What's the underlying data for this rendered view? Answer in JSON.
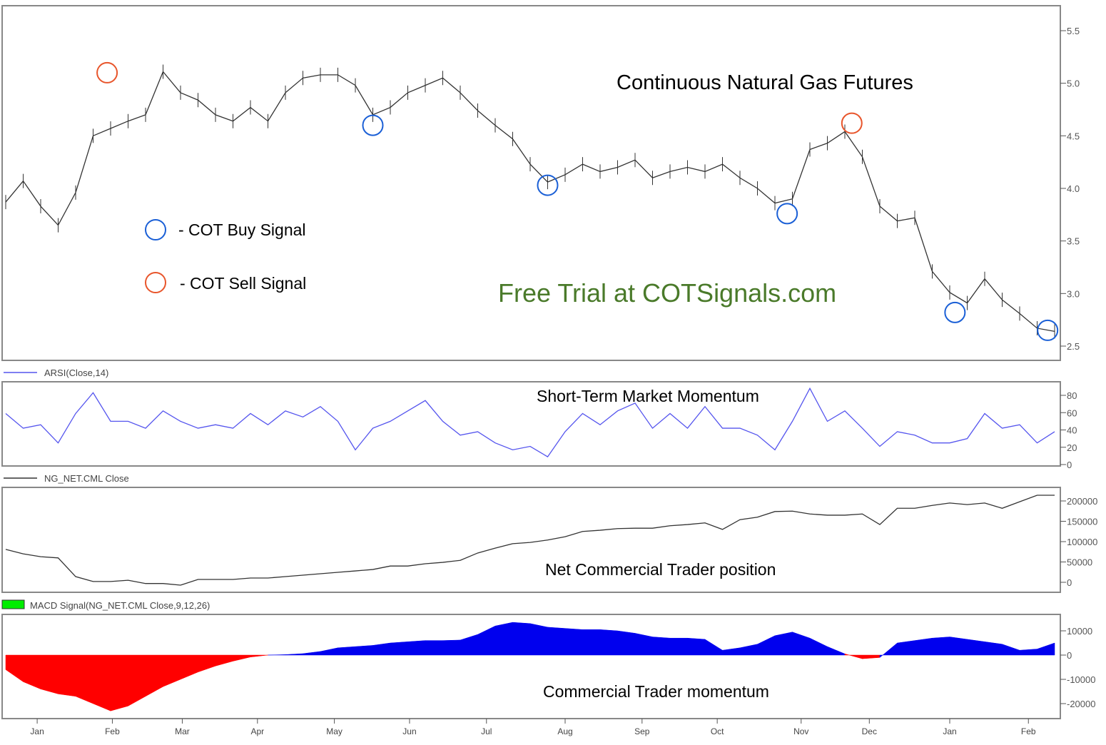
{
  "chart_data": [
    {
      "type": "line",
      "title": "Continuous Natural Gas Futures",
      "annotation": "Free Trial at COTSignals.com",
      "annotation_color": "#4a7a2a",
      "yticks": [
        "2.5",
        "3.0",
        "3.5",
        "4.0",
        "4.5",
        "5.0",
        "5.5"
      ],
      "ylim": [
        2.4,
        5.7
      ],
      "series": [
        {
          "color": "#333333",
          "values": [
            3.87,
            4.07,
            3.83,
            3.65,
            3.96,
            4.5,
            4.57,
            4.64,
            4.7,
            5.11,
            4.91,
            4.84,
            4.7,
            4.64,
            4.77,
            4.64,
            4.91,
            5.05,
            5.08,
            5.08,
            4.98,
            4.7,
            4.77,
            4.91,
            4.98,
            5.05,
            4.91,
            4.74,
            4.6,
            4.47,
            4.23,
            4.06,
            4.13,
            4.23,
            4.16,
            4.2,
            4.27,
            4.1,
            4.16,
            4.2,
            4.16,
            4.23,
            4.1,
            4.0,
            3.86,
            3.9,
            4.37,
            4.43,
            4.54,
            4.3,
            3.83,
            3.69,
            3.72,
            3.21,
            3.01,
            2.91,
            3.14,
            2.94,
            2.81,
            2.67,
            2.64
          ]
        }
      ],
      "legend": [
        {
          "label": "- COT Buy Signal",
          "color": "#1a5fd6"
        },
        {
          "label": "- COT Sell Signal",
          "color": "#e8552b"
        }
      ],
      "buy_signals": [
        {
          "i": 21,
          "y": 4.6
        },
        {
          "i": 31,
          "y": 4.03
        },
        {
          "i": 44.7,
          "y": 3.76
        },
        {
          "i": 54.3,
          "y": 2.82
        },
        {
          "i": 59.6,
          "y": 2.65
        }
      ],
      "sell_signals": [
        {
          "i": 5.8,
          "y": 5.1
        },
        {
          "i": 48.4,
          "y": 4.62
        }
      ]
    },
    {
      "type": "line",
      "legend_label": "ARSI(Close,14)",
      "title": "Short-Term Market Momentum",
      "color": "#5555ee",
      "yticks": [
        "0",
        "20",
        "40",
        "60",
        "80"
      ],
      "ylim": [
        0,
        95
      ],
      "values": [
        59,
        42,
        46,
        25,
        59,
        83,
        50,
        50,
        42,
        62,
        50,
        42,
        46,
        42,
        59,
        46,
        62,
        55,
        67,
        50,
        17,
        42,
        50,
        62,
        74,
        50,
        34,
        38,
        25,
        17,
        21,
        9,
        38,
        59,
        46,
        62,
        71,
        42,
        59,
        42,
        67,
        42,
        42,
        34,
        17,
        50,
        88,
        50,
        62,
        42,
        21,
        38,
        34,
        25,
        25,
        30,
        59,
        42,
        46,
        25,
        38
      ]
    },
    {
      "type": "line",
      "legend_label": "NG_NET.CML Close",
      "title": "Net Commercial Trader position",
      "color": "#333333",
      "yticks": [
        "0",
        "50000",
        "100000",
        "150000",
        "200000"
      ],
      "ylim": [
        -25000,
        235000
      ],
      "values": [
        81000,
        70000,
        63000,
        60000,
        14000,
        2000,
        2000,
        5000,
        -3000,
        -3000,
        -7000,
        7000,
        7000,
        7000,
        10500,
        10500,
        14000,
        17500,
        21000,
        24500,
        28000,
        31500,
        40000,
        40000,
        45600,
        49000,
        54000,
        72000,
        84000,
        95000,
        98000,
        104000,
        112000,
        125000,
        128000,
        132000,
        133000,
        133000,
        139000,
        142000,
        146000,
        130000,
        154000,
        160000,
        174000,
        175000,
        168000,
        165000,
        165000,
        168000,
        142000,
        182000,
        182000,
        189000,
        195000,
        191000,
        195000,
        182000,
        198000,
        214000,
        214000
      ]
    },
    {
      "type": "area",
      "legend_label": "MACD Signal(NG_NET.CML Close,9,12,26)",
      "legend_swatch": "#00ee00",
      "title": "Commercial Trader momentum",
      "positive_color": "#0000ee",
      "negative_color": "#ff0000",
      "yticks": [
        "-20000",
        "-10000",
        "0",
        "10000"
      ],
      "ylim": [
        -25000,
        16000
      ],
      "values": [
        -6000,
        -11000,
        -14000,
        -16000,
        -17000,
        -20000,
        -23000,
        -21000,
        -17000,
        -13000,
        -10000,
        -7000,
        -4500,
        -2500,
        -800,
        0,
        200,
        600,
        1500,
        3000,
        3500,
        4000,
        5000,
        5500,
        6000,
        6000,
        6200,
        8500,
        12000,
        13500,
        13000,
        11500,
        11000,
        10500,
        10500,
        10000,
        9000,
        7500,
        7000,
        7000,
        6500,
        2000,
        3000,
        4500,
        8000,
        9500,
        7000,
        3500,
        500,
        -1500,
        -1000,
        5000,
        6000,
        7000,
        7500,
        6500,
        5500,
        4500,
        2000,
        2500,
        5000
      ]
    }
  ],
  "x_axis": {
    "labels": [
      "Jan",
      "Feb",
      "Mar",
      "Apr",
      "May",
      "Jun",
      "Jul",
      "Aug",
      "Sep",
      "Oct",
      "Nov",
      "Dec",
      "Jan",
      "Feb"
    ]
  }
}
